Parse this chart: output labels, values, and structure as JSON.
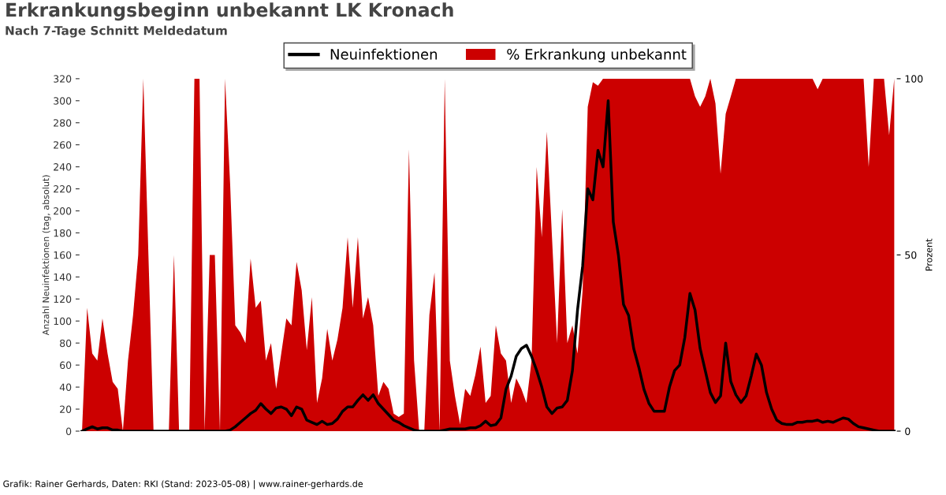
{
  "chart_data": {
    "type": "line",
    "title": "Erkrankungsbeginn unbekannt LK Kronach",
    "subtitle": "Nach 7-Tage Schnitt Meldedatum",
    "ylabel": "Anzahl Neuinfektionen (tag, absolut)",
    "y2label": "Prozent",
    "annotations": [
      "Grafik: Rainer Gerhards, Daten: RKI (Stand: 2023-05-08) | www.rainer-gerhards.de"
    ],
    "categories": [
      null,
      null,
      null,
      null,
      null,
      null,
      null,
      null,
      null,
      null,
      null,
      null,
      null,
      null,
      null,
      null,
      null,
      null,
      null,
      null,
      null,
      null,
      null,
      null,
      null,
      null,
      null,
      null,
      null,
      null,
      null,
      null,
      null,
      null,
      null,
      null,
      null,
      null,
      null,
      null,
      null,
      null,
      null,
      null,
      null,
      null,
      null,
      null,
      null,
      null,
      null,
      null,
      null,
      null,
      null,
      null,
      null,
      null,
      null,
      null,
      null,
      null,
      null,
      null,
      null,
      null,
      null,
      null,
      null,
      null,
      null,
      null,
      null,
      null,
      null,
      null,
      null,
      null,
      null,
      null,
      null,
      null,
      null,
      null,
      null,
      null,
      null,
      null,
      null,
      null,
      null,
      null,
      null,
      null,
      null,
      null,
      null,
      null,
      null,
      null,
      null,
      null,
      null,
      null,
      null,
      null,
      null,
      null,
      null,
      null,
      null,
      null,
      null,
      null,
      null,
      null,
      null,
      null,
      null,
      null,
      null,
      null,
      null,
      null,
      null,
      null,
      null,
      null,
      null,
      null,
      null,
      null,
      null,
      null,
      null,
      null,
      null,
      null,
      null,
      null,
      null,
      null,
      null,
      null,
      null,
      null,
      null,
      null,
      null,
      null,
      null,
      null,
      null,
      null,
      null,
      null,
      null,
      null,
      null,
      null
    ],
    "series": [
      {
        "name": "% Erkrankung unbekannt",
        "type": "area",
        "axis": "y2",
        "color": "#cc0000",
        "values": [
          0,
          35,
          22,
          20,
          32,
          22,
          14,
          12,
          0,
          20,
          33,
          50,
          100,
          50,
          0,
          0,
          0,
          0,
          50,
          0,
          0,
          0,
          100,
          100,
          0,
          50,
          50,
          0,
          100,
          70,
          30,
          28,
          25,
          49,
          35,
          37,
          20,
          25,
          12,
          22,
          32,
          30,
          48,
          40,
          23,
          38,
          8,
          15,
          29,
          20,
          26,
          35,
          55,
          35,
          55,
          32,
          38,
          30,
          10,
          14,
          12,
          5,
          4,
          5,
          80,
          20,
          0,
          0,
          33,
          45,
          0,
          100,
          20,
          10,
          2,
          12,
          10,
          16,
          24,
          8,
          10,
          30,
          22,
          20,
          8,
          15,
          12,
          8,
          20,
          75,
          55,
          85,
          55,
          25,
          63,
          25,
          30,
          22,
          40,
          92,
          99,
          98,
          100,
          100,
          100,
          100,
          100,
          100,
          100,
          100,
          100,
          100,
          100,
          100,
          100,
          100,
          100,
          100,
          100,
          100,
          95,
          92,
          95,
          100,
          93,
          73,
          90,
          95,
          100,
          100,
          100,
          100,
          100,
          100,
          100,
          100,
          100,
          100,
          100,
          100,
          100,
          100,
          100,
          100,
          97,
          100,
          100,
          100,
          100,
          100,
          100,
          100,
          100,
          100,
          75,
          100,
          100,
          100,
          84,
          100
        ]
      },
      {
        "name": "Neuinfektionen",
        "axis": "y",
        "color": "#000000",
        "values": [
          0,
          2,
          4,
          2,
          3,
          3,
          1,
          1,
          0,
          0,
          0,
          0,
          0,
          0,
          0,
          0,
          0,
          0,
          0,
          0,
          0,
          0,
          0,
          0,
          0,
          0,
          0,
          0,
          0,
          1,
          4,
          8,
          12,
          16,
          19,
          25,
          20,
          16,
          21,
          22,
          20,
          14,
          22,
          20,
          10,
          8,
          6,
          9,
          6,
          7,
          11,
          18,
          22,
          22,
          28,
          33,
          28,
          33,
          25,
          20,
          15,
          10,
          8,
          5,
          3,
          1,
          0,
          0,
          0,
          0,
          0,
          1,
          2,
          2,
          2,
          2,
          3,
          3,
          5,
          9,
          5,
          6,
          12,
          38,
          50,
          68,
          75,
          78,
          68,
          55,
          40,
          22,
          16,
          21,
          22,
          28,
          55,
          110,
          150,
          220,
          210,
          255,
          240,
          300,
          190,
          160,
          115,
          105,
          75,
          58,
          38,
          25,
          18,
          18,
          18,
          40,
          55,
          60,
          85,
          125,
          110,
          75,
          55,
          35,
          26,
          32,
          80,
          45,
          33,
          26,
          32,
          50,
          70,
          60,
          35,
          20,
          10,
          7,
          6,
          6,
          8,
          8,
          9,
          9,
          10,
          8,
          9,
          8,
          10,
          12,
          11,
          7,
          4,
          3,
          2,
          1,
          0,
          0,
          0,
          0
        ]
      }
    ],
    "ylim": [
      0,
      320
    ],
    "yticks": [
      0,
      20,
      40,
      60,
      80,
      100,
      120,
      140,
      160,
      180,
      200,
      220,
      240,
      260,
      280,
      300,
      320
    ],
    "y2lim": [
      0,
      100
    ],
    "y2ticks": [
      0,
      50,
      100
    ],
    "legend": "top",
    "grid": false,
    "tick_labels": "y"
  }
}
